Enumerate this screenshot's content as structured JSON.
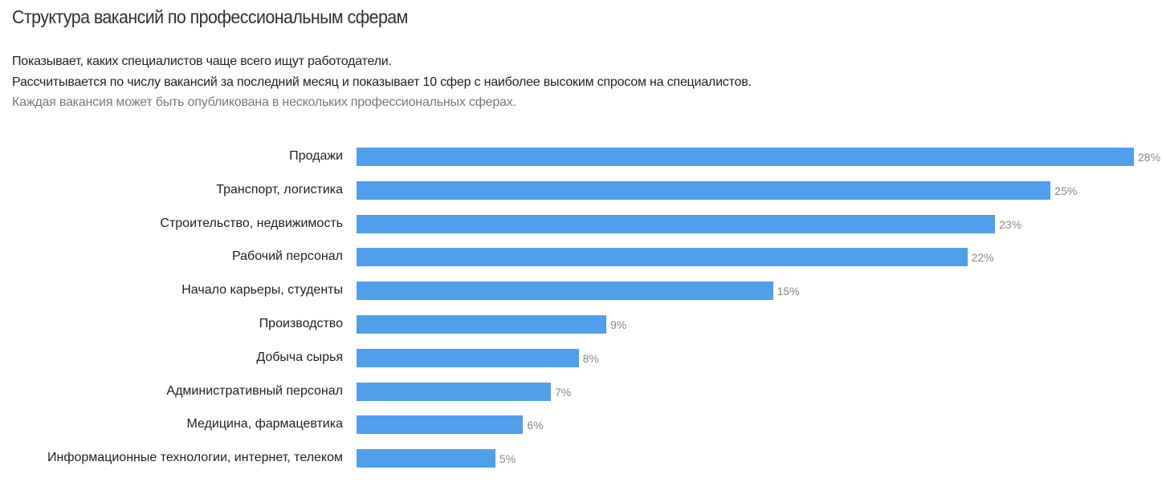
{
  "header": {
    "title": "Структура вакансий по профессиональным сферам",
    "desc1": "Показывает, каких специалистов чаще всего ищут работодатели.",
    "desc2": "Рассчитывается по числу вакансий за последний месяц и показывает 10 сфер с наиболее высоким спросом на специалистов.",
    "desc3": "Каждая вакансия может быть опубликована в нескольких профессиональных сферах."
  },
  "chart_data": {
    "type": "bar",
    "orientation": "horizontal",
    "title": "Структура вакансий по профессиональным сферам",
    "xlabel": "",
    "ylabel": "",
    "xlim": [
      0,
      28
    ],
    "grid": false,
    "unit": "%",
    "bar_color": "#519fea",
    "categories": [
      "Продажи",
      "Транспорт, логистика",
      "Строительство, недвижимость",
      "Рабочий персонал",
      "Начало карьеры, студенты",
      "Производство",
      "Добыча сырья",
      "Административный персонал",
      "Медицина, фармацевтика",
      "Информационные технологии, интернет, телеком"
    ],
    "values": [
      28,
      25,
      23,
      22,
      15,
      9,
      8,
      7,
      6,
      5
    ],
    "value_labels": [
      "28%",
      "25%",
      "23%",
      "22%",
      "15%",
      "9%",
      "8%",
      "7%",
      "6%",
      "5%"
    ]
  }
}
